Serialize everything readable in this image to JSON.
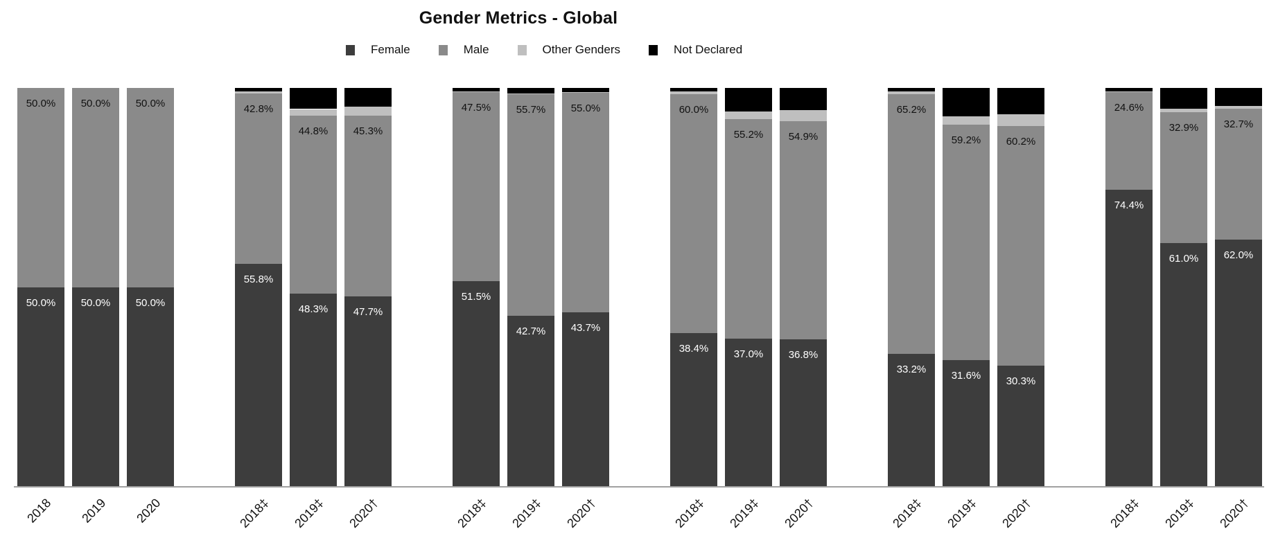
{
  "chart_data": {
    "type": "bar",
    "variant": "stacked-100-percent",
    "title": "Gender Metrics - Global",
    "legend_position": "top",
    "grid": false,
    "y_axis": {
      "visible": false,
      "range_percent": [
        0,
        100
      ]
    },
    "series": [
      "Female",
      "Male",
      "Other Genders",
      "Not Declared"
    ],
    "series_colors": {
      "Female": "#3d3d3d",
      "Male": "#8a8a8a",
      "Other Genders": "#bfbfbf",
      "Not Declared": "#000000"
    },
    "axis_line_color": "#a1a1a1",
    "groups": [
      {
        "bars": [
          {
            "tick": "2018",
            "values": {
              "female": 50.0,
              "male": 50.0,
              "other_genders": 0.0,
              "not_declared": 0.0
            },
            "labels": {
              "female": "50.0%",
              "male": "50.0%"
            }
          },
          {
            "tick": "2019",
            "values": {
              "female": 50.0,
              "male": 50.0,
              "other_genders": 0.0,
              "not_declared": 0.0
            },
            "labels": {
              "female": "50.0%",
              "male": "50.0%"
            }
          },
          {
            "tick": "2020",
            "values": {
              "female": 50.0,
              "male": 50.0,
              "other_genders": 0.0,
              "not_declared": 0.0
            },
            "labels": {
              "female": "50.0%",
              "male": "50.0%"
            }
          }
        ]
      },
      {
        "bars": [
          {
            "tick": "2018‡",
            "values": {
              "female": 55.8,
              "male": 42.8,
              "other_genders": 0.5,
              "not_declared": 0.9
            },
            "labels": {
              "female": "55.8%",
              "male": "42.8%"
            }
          },
          {
            "tick": "2019‡",
            "values": {
              "female": 48.3,
              "male": 44.8,
              "other_genders": 1.6,
              "not_declared": 5.3
            },
            "labels": {
              "female": "48.3%",
              "male": "44.8%"
            }
          },
          {
            "tick": "2020†",
            "values": {
              "female": 47.7,
              "male": 45.3,
              "other_genders": 2.3,
              "not_declared": 4.7
            },
            "labels": {
              "female": "47.7%",
              "male": "45.3%"
            }
          }
        ]
      },
      {
        "bars": [
          {
            "tick": "2018‡",
            "values": {
              "female": 51.5,
              "male": 47.5,
              "other_genders": 0.2,
              "not_declared": 0.8
            },
            "labels": {
              "female": "51.5%",
              "male": "47.5%"
            }
          },
          {
            "tick": "2019‡",
            "values": {
              "female": 42.7,
              "male": 55.7,
              "other_genders": 0.2,
              "not_declared": 1.4
            },
            "labels": {
              "female": "42.7%",
              "male": "55.7%"
            }
          },
          {
            "tick": "2020†",
            "values": {
              "female": 43.7,
              "male": 55.0,
              "other_genders": 0.2,
              "not_declared": 1.1
            },
            "labels": {
              "female": "43.7%",
              "male": "55.0%"
            }
          }
        ]
      },
      {
        "bars": [
          {
            "tick": "2018‡",
            "values": {
              "female": 38.4,
              "male": 60.0,
              "other_genders": 0.7,
              "not_declared": 0.9
            },
            "labels": {
              "female": "38.4%",
              "male": "60.0%"
            }
          },
          {
            "tick": "2019‡",
            "values": {
              "female": 37.0,
              "male": 55.2,
              "other_genders": 1.9,
              "not_declared": 5.9
            },
            "labels": {
              "female": "37.0%",
              "male": "55.2%"
            }
          },
          {
            "tick": "2020†",
            "values": {
              "female": 36.8,
              "male": 54.9,
              "other_genders": 2.8,
              "not_declared": 5.5
            },
            "labels": {
              "female": "36.8%",
              "male": "54.9%"
            }
          }
        ]
      },
      {
        "bars": [
          {
            "tick": "2018‡",
            "values": {
              "female": 33.2,
              "male": 65.2,
              "other_genders": 0.7,
              "not_declared": 0.9
            },
            "labels": {
              "female": "33.2%",
              "male": "65.2%"
            }
          },
          {
            "tick": "2019‡",
            "values": {
              "female": 31.6,
              "male": 59.2,
              "other_genders": 2.0,
              "not_declared": 7.2
            },
            "labels": {
              "female": "31.6%",
              "male": "59.2%"
            }
          },
          {
            "tick": "2020†",
            "values": {
              "female": 30.3,
              "male": 60.2,
              "other_genders": 2.9,
              "not_declared": 6.6
            },
            "labels": {
              "female": "30.3%",
              "male": "60.2%"
            }
          }
        ]
      },
      {
        "bars": [
          {
            "tick": "2018‡",
            "values": {
              "female": 74.4,
              "male": 24.6,
              "other_genders": 0.2,
              "not_declared": 0.8
            },
            "labels": {
              "female": "74.4%",
              "male": "24.6%"
            }
          },
          {
            "tick": "2019‡",
            "values": {
              "female": 61.0,
              "male": 32.9,
              "other_genders": 0.9,
              "not_declared": 5.2
            },
            "labels": {
              "female": "61.0%",
              "male": "32.9%"
            }
          },
          {
            "tick": "2020†",
            "values": {
              "female": 62.0,
              "male": 32.7,
              "other_genders": 0.8,
              "not_declared": 4.5
            },
            "labels": {
              "female": "62.0%",
              "male": "32.7%"
            }
          }
        ]
      }
    ]
  }
}
